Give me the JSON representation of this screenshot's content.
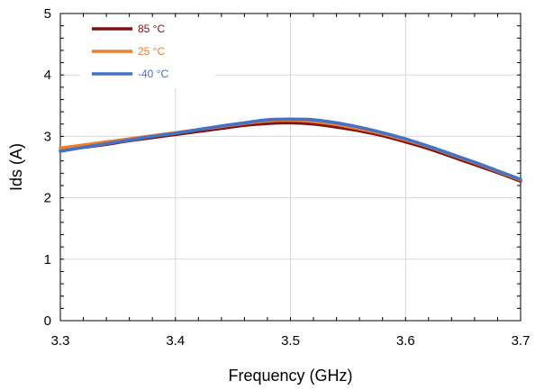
{
  "chart_data": {
    "type": "line",
    "xlabel": "Frequency  (GHz)",
    "ylabel": "Ids (A)",
    "xlim": [
      3.3,
      3.7
    ],
    "ylim": [
      0,
      5
    ],
    "xticks": [
      3.3,
      3.4,
      3.5,
      3.6,
      3.7
    ],
    "xtick_labels": [
      "3.3",
      "3.4",
      "3.5",
      "3.6",
      "3.7"
    ],
    "yticks": [
      0,
      1,
      2,
      3,
      4,
      5
    ],
    "ytick_labels": [
      "0",
      "1",
      "2",
      "3",
      "4",
      "5"
    ],
    "grid": true,
    "legend_position": "top-left",
    "series": [
      {
        "name": "85 °C",
        "color": "#7b1313",
        "x": [
          3.3,
          3.32,
          3.34,
          3.36,
          3.38,
          3.4,
          3.42,
          3.44,
          3.46,
          3.48,
          3.5,
          3.52,
          3.54,
          3.56,
          3.58,
          3.6,
          3.62,
          3.64,
          3.66,
          3.68,
          3.7
        ],
        "y": [
          2.76,
          2.82,
          2.87,
          2.93,
          2.98,
          3.03,
          3.08,
          3.13,
          3.18,
          3.21,
          3.22,
          3.2,
          3.15,
          3.09,
          3.01,
          2.91,
          2.8,
          2.67,
          2.54,
          2.41,
          2.27
        ]
      },
      {
        "name": "25 °C",
        "color": "#ed7d31",
        "x": [
          3.3,
          3.32,
          3.34,
          3.36,
          3.38,
          3.4,
          3.42,
          3.44,
          3.46,
          3.48,
          3.5,
          3.52,
          3.54,
          3.56,
          3.58,
          3.6,
          3.62,
          3.64,
          3.66,
          3.68,
          3.7
        ],
        "y": [
          2.81,
          2.86,
          2.91,
          2.96,
          3.01,
          3.06,
          3.11,
          3.16,
          3.21,
          3.25,
          3.26,
          3.24,
          3.19,
          3.12,
          3.04,
          2.94,
          2.83,
          2.7,
          2.57,
          2.43,
          2.29
        ]
      },
      {
        "name": "-40 °C",
        "color": "#4472c4",
        "x": [
          3.3,
          3.32,
          3.34,
          3.36,
          3.38,
          3.4,
          3.42,
          3.44,
          3.46,
          3.48,
          3.5,
          3.52,
          3.54,
          3.56,
          3.58,
          3.6,
          3.62,
          3.64,
          3.66,
          3.68,
          3.7
        ],
        "y": [
          2.76,
          2.82,
          2.88,
          2.94,
          3.0,
          3.05,
          3.11,
          3.17,
          3.22,
          3.27,
          3.28,
          3.27,
          3.22,
          3.15,
          3.06,
          2.96,
          2.84,
          2.71,
          2.58,
          2.44,
          2.3
        ]
      }
    ]
  }
}
